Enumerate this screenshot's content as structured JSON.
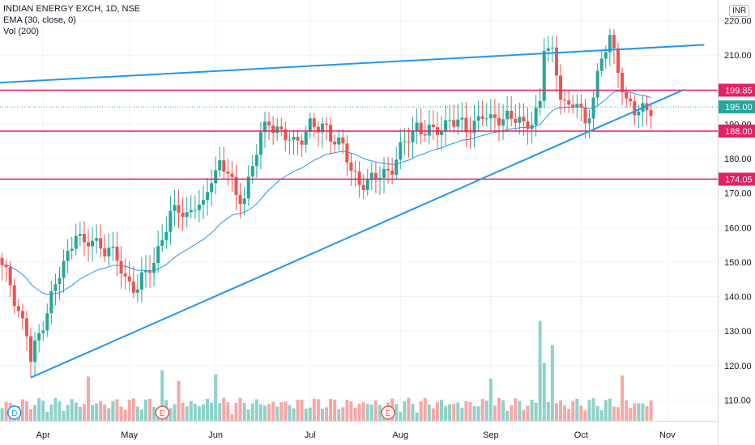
{
  "header": {
    "symbol_line": "INDIAN ENERGY EXCH, 1D, NSE",
    "ema_line": "EMA (30, close, 0)",
    "vol_line": "Vol (200)"
  },
  "currency_badge": "INR",
  "colors": {
    "up": "#26a69a",
    "down": "#ef5350",
    "up_vol": "#8fd1c9",
    "down_vol": "#f5a8a6",
    "ema": "#2196f3",
    "trendline": "#2196f3",
    "hline": "#e91e63",
    "grid": "#f0f3fa",
    "axis_text": "#131722"
  },
  "chart_data": {
    "type": "candlestick",
    "title": "INDIAN ENERGY EXCH, 1D, NSE",
    "ylim": [
      104,
      226
    ],
    "y_ticks": [
      110,
      120,
      130,
      140,
      150,
      160,
      170,
      180,
      190,
      200,
      210,
      220
    ],
    "x_ticks": [
      "Apr",
      "May",
      "Jun",
      "Jul",
      "Aug",
      "Sep",
      "Oct",
      "Nov"
    ],
    "x_tick_index": [
      10,
      31,
      52,
      75,
      97,
      119,
      141,
      162
    ],
    "x_total": 172,
    "horizontal_lines": [
      {
        "value": 199.85,
        "label": "199.85"
      },
      {
        "value": 188.0,
        "label": "188.00"
      },
      {
        "value": 174.05,
        "label": "174.05"
      }
    ],
    "last_price": {
      "value": 195.0,
      "label": "195.00"
    },
    "trendlines": [
      {
        "name": "upper",
        "points": [
          {
            "i": -1,
            "y": 202
          },
          {
            "i": 171,
            "y": 213
          }
        ]
      },
      {
        "name": "lower",
        "points": [
          {
            "i": 7,
            "y": 116.5
          },
          {
            "i": 166,
            "y": 200
          }
        ]
      }
    ],
    "event_markers": [
      {
        "i": 3,
        "letter": "D"
      },
      {
        "i": 39,
        "letter": "E"
      },
      {
        "i": 94,
        "letter": "E"
      }
    ],
    "ohlc_anchors": [
      [
        0,
        148
      ],
      [
        2,
        144
      ],
      [
        4,
        136
      ],
      [
        6,
        129
      ],
      [
        7,
        121
      ],
      [
        8,
        125
      ],
      [
        10,
        133
      ],
      [
        12,
        140
      ],
      [
        14,
        146
      ],
      [
        16,
        152
      ],
      [
        18,
        160
      ],
      [
        20,
        154
      ],
      [
        22,
        156
      ],
      [
        24,
        155
      ],
      [
        26,
        154
      ],
      [
        28,
        150
      ],
      [
        30,
        145
      ],
      [
        33,
        143
      ],
      [
        35,
        146
      ],
      [
        37,
        150
      ],
      [
        39,
        158
      ],
      [
        41,
        163
      ],
      [
        43,
        165
      ],
      [
        45,
        164
      ],
      [
        47,
        167
      ],
      [
        49,
        165
      ],
      [
        51,
        175
      ],
      [
        53,
        179
      ],
      [
        55,
        176
      ],
      [
        57,
        168
      ],
      [
        59,
        170
      ],
      [
        61,
        178
      ],
      [
        63,
        186
      ],
      [
        65,
        191
      ],
      [
        67,
        189
      ],
      [
        69,
        186
      ],
      [
        71,
        184
      ],
      [
        73,
        187
      ],
      [
        75,
        190
      ],
      [
        77,
        188
      ],
      [
        79,
        189
      ],
      [
        81,
        186
      ],
      [
        83,
        183
      ],
      [
        85,
        176
      ],
      [
        87,
        174
      ],
      [
        89,
        173
      ],
      [
        91,
        174
      ],
      [
        93,
        176
      ],
      [
        95,
        178
      ],
      [
        97,
        182
      ],
      [
        99,
        186
      ],
      [
        101,
        190
      ],
      [
        103,
        188
      ],
      [
        105,
        187
      ],
      [
        107,
        189
      ],
      [
        109,
        192
      ],
      [
        111,
        190
      ],
      [
        113,
        188
      ],
      [
        115,
        191
      ],
      [
        117,
        193
      ],
      [
        119,
        190
      ],
      [
        121,
        192
      ],
      [
        123,
        193
      ],
      [
        125,
        191
      ],
      [
        127,
        189
      ],
      [
        129,
        192
      ],
      [
        131,
        196
      ],
      [
        132,
        212
      ],
      [
        134,
        210
      ],
      [
        136,
        200
      ],
      [
        138,
        194
      ],
      [
        140,
        196
      ],
      [
        142,
        190
      ],
      [
        144,
        199
      ],
      [
        146,
        208
      ],
      [
        148,
        215
      ],
      [
        150,
        207
      ],
      [
        152,
        196
      ],
      [
        154,
        193
      ],
      [
        156,
        195
      ],
      [
        158,
        195
      ]
    ],
    "volume_spikes": [
      {
        "i": 131,
        "h": 0.95
      },
      {
        "i": 134,
        "h": 0.72
      },
      {
        "i": 132,
        "h": 0.55
      },
      {
        "i": 119,
        "h": 0.4
      },
      {
        "i": 39,
        "h": 0.48
      },
      {
        "i": 52,
        "h": 0.44
      },
      {
        "i": 21,
        "h": 0.42
      },
      {
        "i": 151,
        "h": 0.43
      },
      {
        "i": 43,
        "h": 0.38
      }
    ]
  }
}
